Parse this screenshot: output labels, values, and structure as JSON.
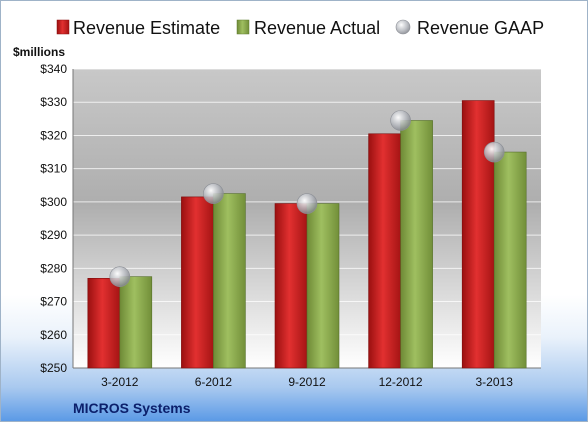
{
  "chart_data": {
    "type": "bar",
    "title": "",
    "unit_label": "$millions",
    "footer_label": "MICROS Systems",
    "categories": [
      "3-2012",
      "6-2012",
      "9-2012",
      "12-2012",
      "3-2013"
    ],
    "series": [
      {
        "name": "Revenue Estimate",
        "kind": "bar",
        "color": "#d42020",
        "values": [
          277,
          301.5,
          299.5,
          320.5,
          330.5
        ]
      },
      {
        "name": "Revenue Actual",
        "kind": "bar",
        "color": "#8fb04f",
        "values": [
          277.5,
          302.5,
          299.5,
          324.5,
          315
        ]
      },
      {
        "name": "Revenue GAAP",
        "kind": "marker",
        "color": "#b8bcc4",
        "values": [
          277.5,
          302.5,
          299.5,
          324.5,
          315
        ]
      }
    ],
    "ylim": [
      250,
      340
    ],
    "yticks": [
      250,
      260,
      270,
      280,
      290,
      300,
      310,
      320,
      330,
      340
    ],
    "y_tick_prefix": "$",
    "grid": true,
    "legend_position": "top"
  }
}
